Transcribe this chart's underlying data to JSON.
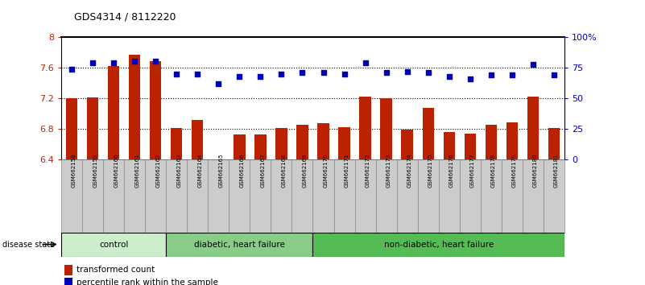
{
  "title": "GDS4314 / 8112220",
  "samples": [
    "GSM662158",
    "GSM662159",
    "GSM662160",
    "GSM662161",
    "GSM662162",
    "GSM662163",
    "GSM662164",
    "GSM662165",
    "GSM662166",
    "GSM662167",
    "GSM662168",
    "GSM662169",
    "GSM662170",
    "GSM662171",
    "GSM662172",
    "GSM662173",
    "GSM662174",
    "GSM662175",
    "GSM662176",
    "GSM662177",
    "GSM662178",
    "GSM662179",
    "GSM662180",
    "GSM662181"
  ],
  "bar_values": [
    7.2,
    7.21,
    7.62,
    7.77,
    7.68,
    6.81,
    6.92,
    6.4,
    6.73,
    6.73,
    6.81,
    6.85,
    6.88,
    6.82,
    7.22,
    7.2,
    6.79,
    7.07,
    6.76,
    6.74,
    6.85,
    6.89,
    7.22,
    6.81
  ],
  "dot_values": [
    74,
    79,
    79,
    80,
    80,
    70,
    70,
    62,
    68,
    68,
    70,
    71,
    71,
    70,
    79,
    71,
    72,
    71,
    68,
    66,
    69,
    69,
    78,
    69
  ],
  "ylim_left": [
    6.4,
    8.0
  ],
  "ylim_right": [
    0,
    100
  ],
  "yticks_left": [
    6.4,
    6.8,
    7.2,
    7.6,
    8.0
  ],
  "ytick_labels_left": [
    "6.4",
    "6.8",
    "7.2",
    "7.6",
    "8"
  ],
  "yticks_right": [
    0,
    25,
    50,
    75,
    100
  ],
  "ytick_labels_right": [
    "0",
    "25",
    "50",
    "75",
    "100%"
  ],
  "bar_color": "#bb2200",
  "dot_color": "#0000bb",
  "groups": [
    {
      "label": "control",
      "start": 0,
      "end": 5,
      "color": "#cceecc"
    },
    {
      "label": "diabetic, heart failure",
      "start": 5,
      "end": 12,
      "color": "#88cc88"
    },
    {
      "label": "non-diabetic, heart failure",
      "start": 12,
      "end": 24,
      "color": "#55bb55"
    }
  ],
  "disease_state_label": "disease state",
  "legend_bar_label": "transformed count",
  "legend_dot_label": "percentile rank within the sample"
}
